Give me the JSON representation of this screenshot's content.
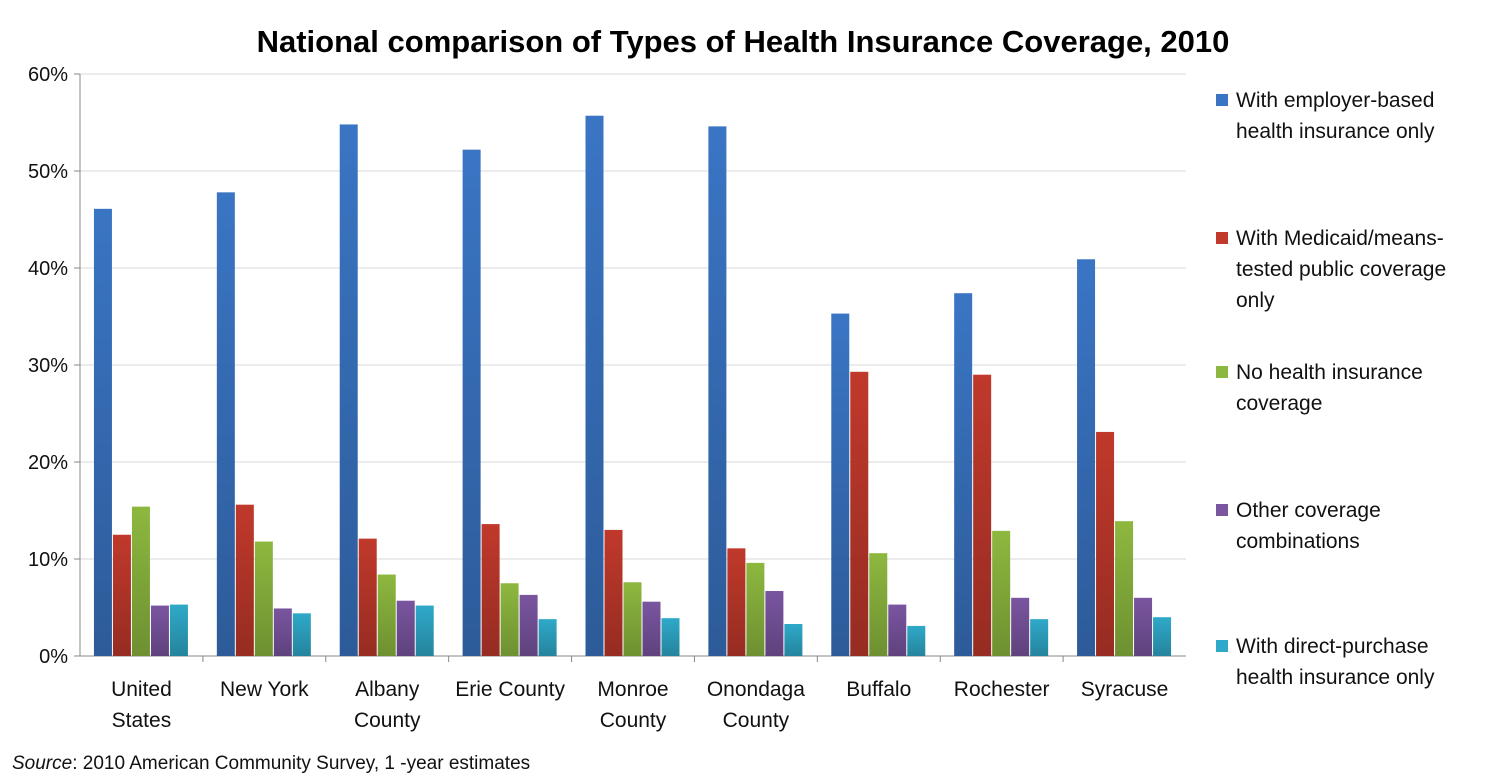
{
  "chart_data": {
    "type": "bar",
    "title": "National comparison of Types of Health Insurance Coverage, 2010",
    "categories": [
      [
        "United",
        "States"
      ],
      [
        "New York"
      ],
      [
        "Albany",
        "County"
      ],
      [
        "Erie County"
      ],
      [
        "Monroe",
        "County"
      ],
      [
        "Onondaga",
        "County"
      ],
      [
        "Buffalo"
      ],
      [
        "Rochester"
      ],
      [
        "Syracuse"
      ]
    ],
    "ylim": [
      0,
      60
    ],
    "yticks": [
      0,
      10,
      20,
      30,
      40,
      50,
      60
    ],
    "ytick_labels": [
      "0%",
      "10%",
      "20%",
      "30%",
      "40%",
      "50%",
      "60%"
    ],
    "grid": true,
    "legend_position": "right",
    "series": [
      {
        "name": "With employer-based health insurance only",
        "legend_lines": [
          "With employer-based",
          "health insurance only"
        ],
        "color": "#3a75c4",
        "values": [
          46.1,
          47.8,
          54.8,
          52.2,
          55.7,
          54.6,
          35.3,
          37.4,
          40.9
        ]
      },
      {
        "name": "With Medicaid/means-tested public coverage only",
        "legend_lines": [
          "With Medicaid/means-",
          "tested public coverage",
          "only"
        ],
        "color": "#c0392b",
        "values": [
          12.5,
          15.6,
          12.1,
          13.6,
          13.0,
          11.1,
          29.3,
          29.0,
          23.1
        ]
      },
      {
        "name": "No health insurance coverage",
        "legend_lines": [
          "No health insurance",
          "coverage"
        ],
        "color": "#8db83f",
        "values": [
          15.4,
          11.8,
          8.4,
          7.5,
          7.6,
          9.6,
          10.6,
          12.9,
          13.9
        ]
      },
      {
        "name": "Other coverage combinations",
        "legend_lines": [
          "Other coverage",
          "combinations"
        ],
        "color": "#7a55a0",
        "values": [
          5.2,
          4.9,
          5.7,
          6.3,
          5.6,
          6.7,
          5.3,
          6.0,
          6.0
        ]
      },
      {
        "name": "With direct-purchase health insurance only",
        "legend_lines": [
          "With direct-purchase",
          "health insurance only"
        ],
        "color": "#2fa9c9",
        "values": [
          5.3,
          4.4,
          5.2,
          3.8,
          3.9,
          3.3,
          3.1,
          3.8,
          4.0
        ]
      }
    ]
  },
  "source": {
    "label": "Source",
    "text": ": 2010 American Community Survey, 1 -year estimates"
  }
}
